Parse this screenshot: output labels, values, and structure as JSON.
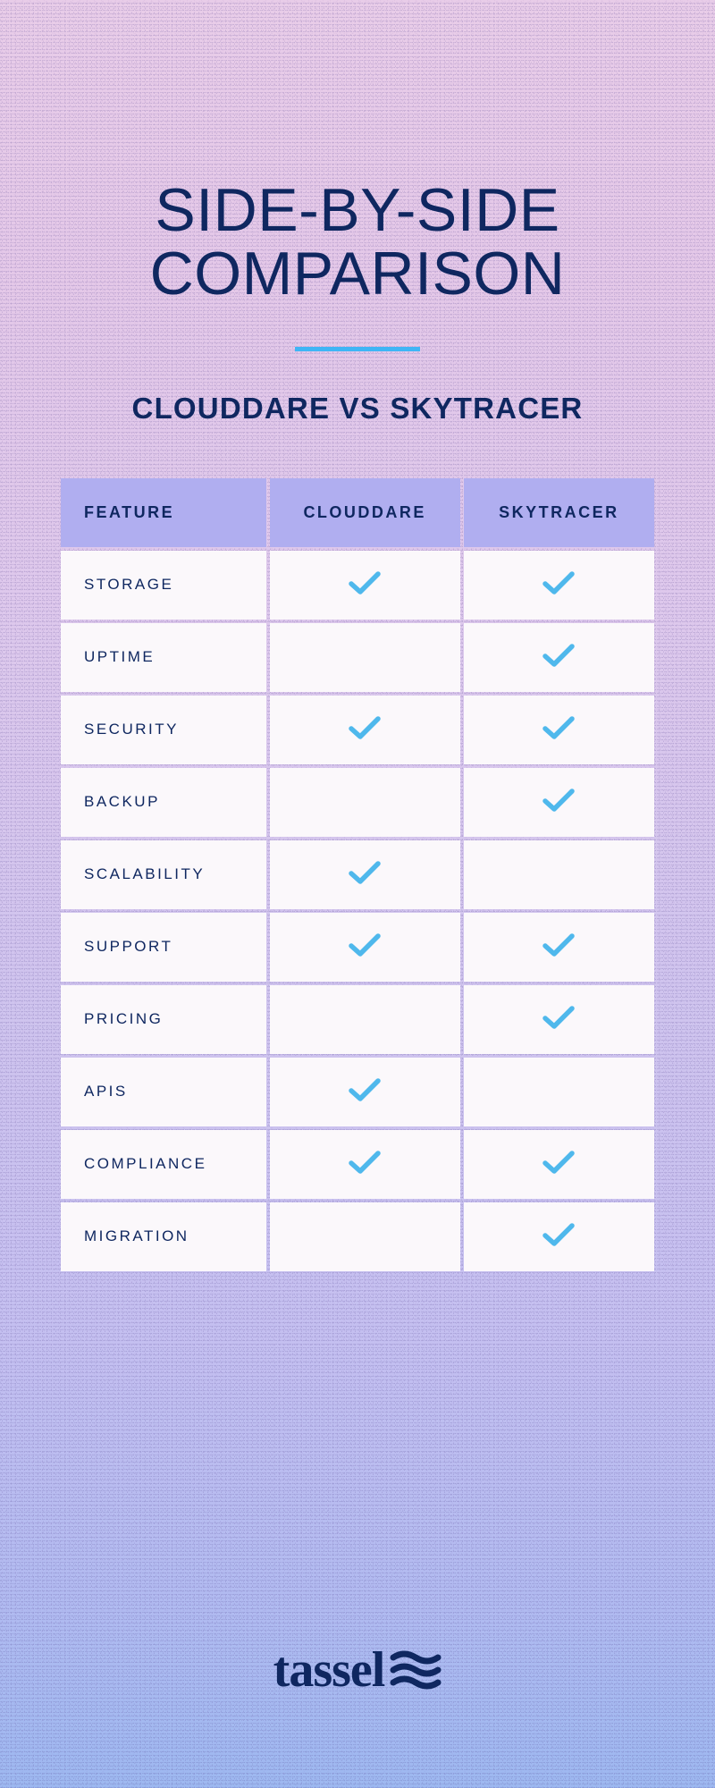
{
  "colors": {
    "title": "#0f2760",
    "subtitle": "#0f2760",
    "divider": "#3fb5f5",
    "header_bg": "#b0aef0",
    "header_text": "#0f2760",
    "cell_bg": "#fbf8fb",
    "cell_text": "#0f2760",
    "check": "#4fb8ec",
    "logo": "#0f2760"
  },
  "title": "SIDE-BY-SIDE COMPARISON",
  "subtitle": "CLOUDDARE VS SKYTRACER",
  "table": {
    "columns": [
      "FEATURE",
      "CLOUDDARE",
      "SKYTRACER"
    ],
    "rows": [
      {
        "feature": "STORAGE",
        "clouddare": true,
        "skytracer": true
      },
      {
        "feature": "UPTIME",
        "clouddare": false,
        "skytracer": true
      },
      {
        "feature": "SECURITY",
        "clouddare": true,
        "skytracer": true
      },
      {
        "feature": "BACKUP",
        "clouddare": false,
        "skytracer": true
      },
      {
        "feature": "SCALABILITY",
        "clouddare": true,
        "skytracer": false
      },
      {
        "feature": "SUPPORT",
        "clouddare": true,
        "skytracer": true
      },
      {
        "feature": "PRICING",
        "clouddare": false,
        "skytracer": true
      },
      {
        "feature": "APIS",
        "clouddare": true,
        "skytracer": false
      },
      {
        "feature": "COMPLIANCE",
        "clouddare": true,
        "skytracer": true
      },
      {
        "feature": "MIGRATION",
        "clouddare": false,
        "skytracer": true
      }
    ]
  },
  "logo_text": "tassel"
}
